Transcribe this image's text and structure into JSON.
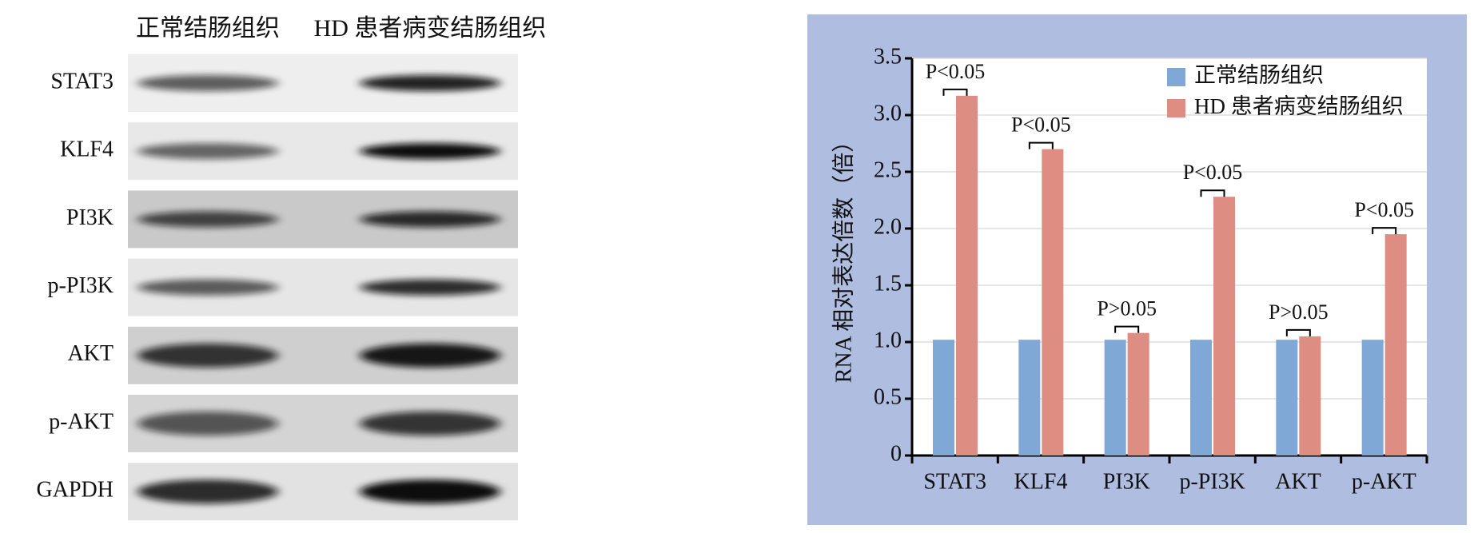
{
  "blot": {
    "columns": [
      "正常结肠组织",
      "HD 患者病变结肠组织"
    ],
    "rows": [
      "STAT3",
      "KLF4",
      "PI3K",
      "p-PI3K",
      "AKT",
      "p-AKT",
      "GAPDH"
    ]
  },
  "chart_data": {
    "type": "bar",
    "ylabel": "RNA 相对表达倍数（倍）",
    "categories": [
      "STAT3",
      "KLF4",
      "PI3K",
      "p-PI3K",
      "AKT",
      "p-AKT"
    ],
    "series": [
      {
        "name": "正常结肠组织",
        "color": "#7fa8d6",
        "values": [
          1.02,
          1.02,
          1.02,
          1.02,
          1.02,
          1.02
        ]
      },
      {
        "name": "HD 患者病变结肠组织",
        "color": "#de8d82",
        "values": [
          3.17,
          2.7,
          1.08,
          2.28,
          1.05,
          1.95
        ]
      }
    ],
    "significance": [
      "P<0.05",
      "P<0.05",
      "P>0.05",
      "P<0.05",
      "P>0.05",
      "P<0.05"
    ],
    "ylim": [
      0,
      3.5
    ],
    "yticks": [
      0,
      0.5,
      {
        "value": 1,
        "label": "1.0"
      },
      1.5,
      {
        "value": 2,
        "label": "2.0"
      },
      2.5,
      {
        "value": 3,
        "label": "3.0"
      },
      3.5
    ],
    "grid": true,
    "legend": "top-right"
  }
}
